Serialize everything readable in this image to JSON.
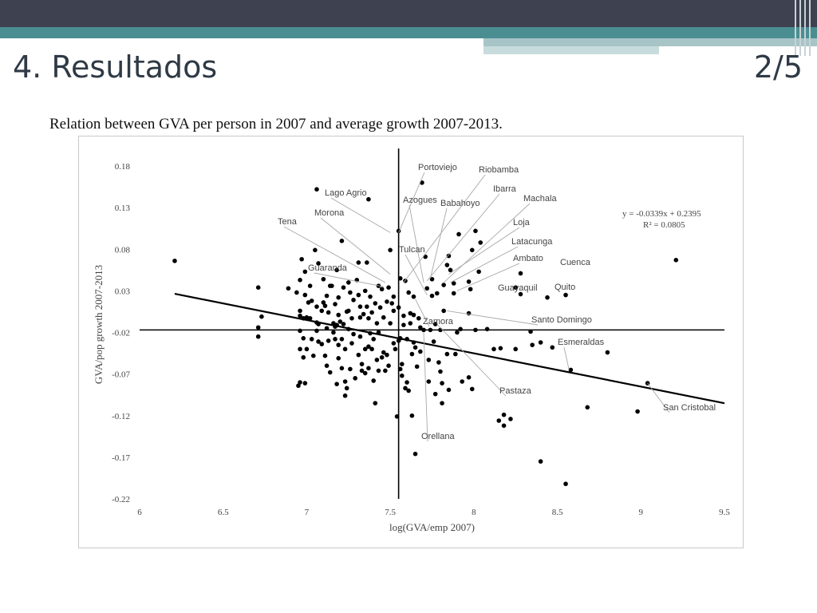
{
  "slide": {
    "title": "4. Resultados",
    "page": "2/5"
  },
  "caption": "Relation between GVA per person in 2007 and average growth 2007-2013.",
  "chart_data": {
    "type": "scatter",
    "xlabel": "log(GVA/emp 2007)",
    "ylabel": "GVA/pop growth 2007-2013",
    "xlim": [
      6,
      9.5
    ],
    "ylim": [
      -0.22,
      0.18
    ],
    "x_ticks": [
      "6",
      "6.5",
      "7",
      "7.5",
      "8",
      "8.5",
      "9",
      "9.5"
    ],
    "y_ticks": [
      "0.18",
      "0.13",
      "0.08",
      "0.03",
      "-0.02",
      "-0.07",
      "-0.12",
      "-0.17",
      "-0.22"
    ],
    "x_ref": 7.55,
    "y_ref": -0.017,
    "trendline": {
      "slope": -0.0339,
      "intercept": 0.2395,
      "equation": "y = -0.0339x + 0.2395",
      "r2": "R² = 0.0805"
    },
    "points": [
      [
        6.21,
        0.066
      ],
      [
        6.71,
        0.034
      ],
      [
        6.71,
        -0.014
      ],
      [
        6.71,
        -0.025
      ],
      [
        6.73,
        -0.001
      ],
      [
        6.89,
        0.033
      ],
      [
        6.94,
        0.028
      ],
      [
        6.96,
        0.043
      ],
      [
        6.96,
        0.006
      ],
      [
        6.96,
        0.0
      ],
      [
        6.96,
        -0.018
      ],
      [
        6.96,
        -0.04
      ],
      [
        6.96,
        -0.08
      ],
      [
        6.97,
        0.068
      ],
      [
        6.98,
        -0.003
      ],
      [
        6.98,
        -0.027
      ],
      [
        6.98,
        -0.05
      ],
      [
        6.99,
        0.053
      ],
      [
        6.99,
        0.025
      ],
      [
        7.0,
        -0.002
      ],
      [
        7.0,
        -0.04
      ],
      [
        7.01,
        0.016
      ],
      [
        7.02,
        0.036
      ],
      [
        7.02,
        -0.003
      ],
      [
        7.03,
        0.018
      ],
      [
        7.03,
        -0.028
      ],
      [
        7.04,
        -0.048
      ],
      [
        7.05,
        0.079
      ],
      [
        7.06,
        0.152
      ],
      [
        7.06,
        0.011
      ],
      [
        7.06,
        -0.008
      ],
      [
        7.06,
        -0.018
      ],
      [
        7.07,
        0.063
      ],
      [
        7.07,
        -0.01
      ],
      [
        7.09,
        0.006
      ],
      [
        7.09,
        -0.034
      ],
      [
        7.1,
        0.044
      ],
      [
        7.1,
        0.016
      ],
      [
        7.11,
        0.012
      ],
      [
        7.11,
        -0.048
      ],
      [
        7.12,
        0.024
      ],
      [
        7.12,
        -0.015
      ],
      [
        7.12,
        -0.06
      ],
      [
        7.13,
        -0.03
      ],
      [
        7.13,
        0.004
      ],
      [
        7.14,
        -0.068
      ],
      [
        7.14,
        0.036
      ],
      [
        7.15,
        0.036
      ],
      [
        7.16,
        -0.009
      ],
      [
        7.17,
        -0.013
      ],
      [
        7.17,
        0.014
      ],
      [
        7.17,
        -0.028
      ],
      [
        7.18,
        0.055
      ],
      [
        7.18,
        -0.082
      ],
      [
        7.18,
        -0.011
      ],
      [
        7.19,
        0.022
      ],
      [
        7.19,
        0.001
      ],
      [
        7.19,
        -0.051
      ],
      [
        7.2,
        -0.007
      ],
      [
        7.21,
        0.09
      ],
      [
        7.21,
        -0.028
      ],
      [
        7.21,
        -0.063
      ],
      [
        7.22,
        0.034
      ],
      [
        7.22,
        -0.01
      ],
      [
        7.23,
        -0.04
      ],
      [
        7.23,
        -0.096
      ],
      [
        7.24,
        0.005
      ],
      [
        7.24,
        -0.087
      ],
      [
        7.25,
        0.04
      ],
      [
        7.25,
        -0.016
      ],
      [
        7.26,
        -0.064
      ],
      [
        7.26,
        0.028
      ],
      [
        7.27,
        -0.003
      ],
      [
        7.27,
        -0.033
      ],
      [
        7.28,
        0.019
      ],
      [
        7.29,
        -0.075
      ],
      [
        7.3,
        0.043
      ],
      [
        7.31,
        0.064
      ],
      [
        7.31,
        0.025
      ],
      [
        7.31,
        -0.047
      ],
      [
        7.32,
        -0.025
      ],
      [
        7.32,
        0.011
      ],
      [
        7.33,
        -0.058
      ],
      [
        7.33,
        -0.066
      ],
      [
        7.34,
        0.002
      ],
      [
        7.35,
        0.03
      ],
      [
        7.35,
        -0.069
      ],
      [
        7.36,
        0.064
      ],
      [
        7.36,
        0.011
      ],
      [
        7.37,
        0.14
      ],
      [
        7.37,
        -0.003
      ],
      [
        7.37,
        -0.037
      ],
      [
        7.37,
        -0.063
      ],
      [
        7.38,
        0.023
      ],
      [
        7.38,
        -0.021
      ],
      [
        7.39,
        -0.04
      ],
      [
        7.4,
        -0.028
      ],
      [
        7.4,
        -0.078
      ],
      [
        7.41,
        0.015
      ],
      [
        7.41,
        -0.105
      ],
      [
        7.42,
        -0.053
      ],
      [
        7.42,
        -0.009
      ],
      [
        7.43,
        0.036
      ],
      [
        7.43,
        -0.066
      ],
      [
        7.44,
        0.01
      ],
      [
        7.45,
        0.032
      ],
      [
        7.46,
        -0.002
      ],
      [
        7.46,
        -0.044
      ],
      [
        7.47,
        -0.066
      ],
      [
        7.48,
        0.017
      ],
      [
        7.49,
        0.034
      ],
      [
        7.49,
        -0.06
      ],
      [
        7.5,
        0.079
      ],
      [
        7.5,
        -0.009
      ],
      [
        7.51,
        0.015
      ],
      [
        7.52,
        0.006
      ],
      [
        7.52,
        -0.033
      ],
      [
        7.53,
        -0.04
      ],
      [
        7.54,
        -0.121
      ],
      [
        7.55,
        0.102
      ],
      [
        7.55,
        0.01
      ],
      [
        7.55,
        -0.03
      ],
      [
        7.56,
        -0.027
      ],
      [
        7.56,
        0.045
      ],
      [
        7.57,
        -0.058
      ],
      [
        7.57,
        -0.072
      ],
      [
        7.58,
        -0.011
      ],
      [
        7.59,
        0.042
      ],
      [
        7.59,
        -0.087
      ],
      [
        7.6,
        -0.028
      ],
      [
        7.61,
        0.028
      ],
      [
        7.61,
        -0.09
      ],
      [
        7.62,
        0.003
      ],
      [
        7.62,
        -0.009
      ],
      [
        7.63,
        -0.046
      ],
      [
        7.63,
        -0.12
      ],
      [
        7.64,
        0.001
      ],
      [
        7.64,
        0.023
      ],
      [
        7.64,
        -0.032
      ],
      [
        7.65,
        -0.166
      ],
      [
        7.66,
        -0.061
      ],
      [
        7.67,
        -0.003
      ],
      [
        7.68,
        -0.014
      ],
      [
        7.68,
        -0.043
      ],
      [
        7.69,
        0.16
      ],
      [
        7.71,
        0.071
      ],
      [
        7.72,
        0.033
      ],
      [
        7.73,
        -0.053
      ],
      [
        7.73,
        -0.079
      ],
      [
        7.74,
        -0.017
      ],
      [
        7.75,
        0.044
      ],
      [
        7.75,
        0.024
      ],
      [
        7.76,
        -0.031
      ],
      [
        7.77,
        -0.01
      ],
      [
        7.77,
        -0.094
      ],
      [
        7.78,
        0.027
      ],
      [
        7.79,
        -0.056
      ],
      [
        7.8,
        -0.017
      ],
      [
        7.8,
        -0.067
      ],
      [
        7.81,
        -0.081
      ],
      [
        7.81,
        -0.105
      ],
      [
        7.82,
        0.037
      ],
      [
        7.82,
        0.006
      ],
      [
        7.84,
        0.061
      ],
      [
        7.84,
        -0.046
      ],
      [
        7.85,
        0.072
      ],
      [
        7.85,
        -0.089
      ],
      [
        7.86,
        0.055
      ],
      [
        7.88,
        0.039
      ],
      [
        7.88,
        0.027
      ],
      [
        7.89,
        -0.046
      ],
      [
        7.9,
        -0.02
      ],
      [
        7.91,
        0.098
      ],
      [
        7.92,
        -0.016
      ],
      [
        7.93,
        -0.079
      ],
      [
        7.97,
        0.041
      ],
      [
        7.97,
        0.003
      ],
      [
        7.97,
        -0.074
      ],
      [
        7.98,
        0.032
      ],
      [
        7.99,
        0.079
      ],
      [
        7.99,
        -0.088
      ],
      [
        8.01,
        0.102
      ],
      [
        8.01,
        -0.017
      ],
      [
        8.03,
        0.053
      ],
      [
        8.04,
        0.088
      ],
      [
        8.08,
        -0.016
      ],
      [
        8.12,
        -0.04
      ],
      [
        8.15,
        -0.126
      ],
      [
        8.16,
        -0.039
      ],
      [
        8.18,
        -0.119
      ],
      [
        8.18,
        -0.132
      ],
      [
        8.22,
        -0.124
      ],
      [
        8.25,
        0.034
      ],
      [
        8.25,
        -0.04
      ],
      [
        8.28,
        0.051
      ],
      [
        8.28,
        0.026
      ],
      [
        8.34,
        -0.019
      ],
      [
        8.35,
        -0.035
      ],
      [
        8.4,
        -0.032
      ],
      [
        8.4,
        -0.175
      ],
      [
        8.44,
        0.022
      ],
      [
        8.47,
        -0.038
      ],
      [
        8.55,
        0.025
      ],
      [
        8.55,
        -0.202
      ],
      [
        8.58,
        -0.065
      ],
      [
        8.68,
        -0.11
      ],
      [
        8.8,
        -0.044
      ],
      [
        8.98,
        -0.115
      ],
      [
        9.04,
        -0.081
      ],
      [
        9.21,
        0.067
      ],
      [
        6.95,
        -0.084
      ],
      [
        6.99,
        -0.081
      ],
      [
        7.07,
        -0.031
      ],
      [
        7.16,
        -0.02
      ],
      [
        7.23,
        -0.079
      ],
      [
        7.28,
        -0.022
      ],
      [
        7.35,
        -0.04
      ],
      [
        7.43,
        -0.02
      ],
      [
        7.48,
        -0.047
      ],
      [
        7.56,
        -0.064
      ],
      [
        7.6,
        -0.08
      ],
      [
        7.65,
        -0.038
      ],
      [
        7.7,
        -0.017
      ],
      [
        7.58,
        0.0
      ],
      [
        7.52,
        0.023
      ],
      [
        7.45,
        -0.05
      ],
      [
        7.39,
        0.004
      ],
      [
        7.32,
        -0.002
      ],
      [
        7.25,
        0.006
      ],
      [
        7.19,
        -0.035
      ]
    ],
    "labels": [
      {
        "text": "Portoviejo"
      },
      {
        "text": "Riobamba"
      },
      {
        "text": "Ibarra"
      },
      {
        "text": "Lago Agrio"
      },
      {
        "text": "Azogues"
      },
      {
        "text": "Babahoyo"
      },
      {
        "text": "Machala"
      },
      {
        "text": "Morona"
      },
      {
        "text": "Tena"
      },
      {
        "text": "Loja"
      },
      {
        "text": "Latacunga"
      },
      {
        "text": "Tulcan"
      },
      {
        "text": "Ambato"
      },
      {
        "text": "Cuenca"
      },
      {
        "text": "Guaranda"
      },
      {
        "text": "Guayaquil"
      },
      {
        "text": "Quito"
      },
      {
        "text": "Santo Domingo"
      },
      {
        "text": "Zamora"
      },
      {
        "text": "Esmeraldas"
      },
      {
        "text": "Pastaza"
      },
      {
        "text": "San Cristobal"
      },
      {
        "text": "Orellana"
      }
    ]
  }
}
